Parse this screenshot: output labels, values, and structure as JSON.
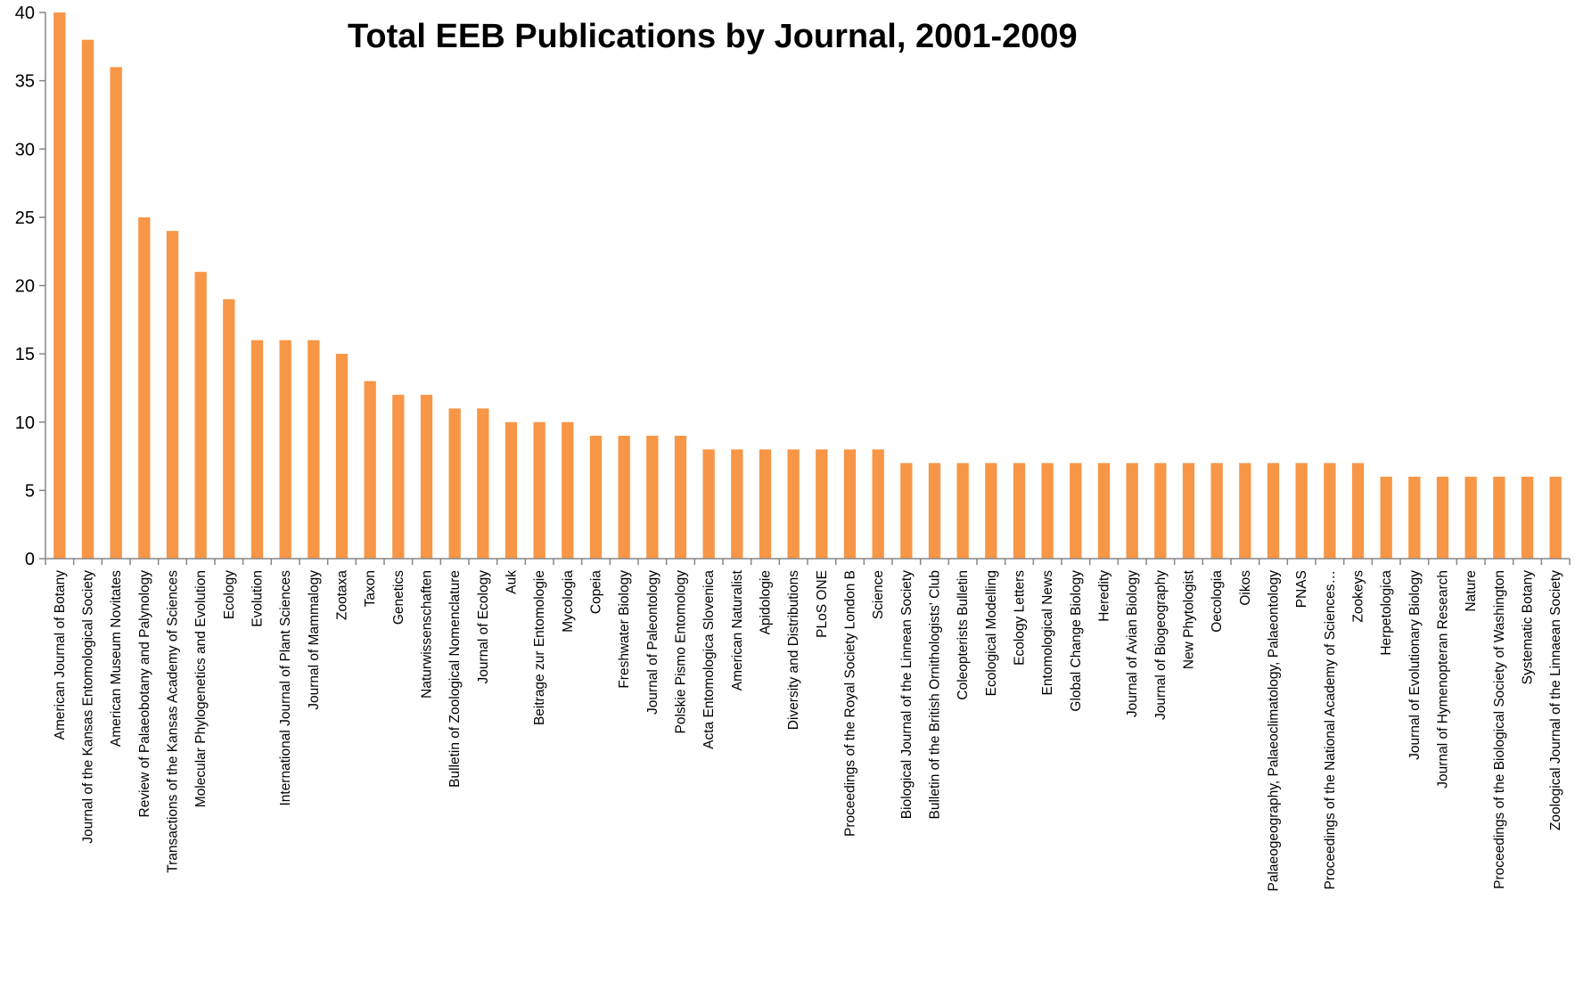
{
  "chart_data": {
    "type": "bar",
    "title": "Total EEB Publications by Journal, 2001-2009",
    "xlabel": "",
    "ylabel": "",
    "ylim": [
      0,
      40
    ],
    "yticks": [
      "0",
      "5",
      "10",
      "15",
      "20",
      "25",
      "30",
      "35",
      "40"
    ],
    "grid": false,
    "legend": "none",
    "bar_color": "#F79646",
    "categories": [
      "American Journal of Botany",
      "Journal of the Kansas Entomological Society",
      "American Museum Novitates",
      "Review of Palaeobotany and Palynology",
      "Transactions of the Kansas Academy of Sciences",
      "Molecular Phylogenetics and Evolution",
      "Ecology",
      "Evolution",
      "International Journal of Plant Sciences",
      "Journal of Mammalogy",
      "Zootaxa",
      "Taxon",
      "Genetics",
      "Naturwissenschaften",
      "Bulletin of Zoological Nomenclature",
      "Journal of Ecology",
      "Auk",
      "Beitrage zur Entomologie",
      "Mycologia",
      "Copeia",
      "Freshwater Biology",
      "Journal of Paleontology",
      "Polskie Pismo Entomology",
      "Acta Entomologica Slovenica",
      "American Naturalist",
      "Apidologie",
      "Diversity and Distributions",
      "PLoS ONE",
      "Proceedings of the Royal Society London B",
      "Science",
      "Biological Journal of the Linnean Society",
      "Bulletin of the British Ornithologists' Club",
      "Coleopterists Bulletin",
      "Ecological Modelling",
      "Ecology Letters",
      "Entomological News",
      "Global Change Biology",
      "Heredity",
      "Journal of Avian Biology",
      "Journal of Biogeography",
      "New Phytologist",
      "Oecologia",
      "Oikos",
      "Palaeogeography, Palaeoclimatology, Palaeontology",
      "PNAS",
      "Proceedings of the National Academy of Sciences…",
      "Zookeys",
      "Herpetologica",
      "Journal of Evolutionary Biology",
      "Journal of Hymenopteran Research",
      "Nature",
      "Proceedings of the Biological Society of Washington",
      "Systematic Botany",
      "Zoological Journal of the Linnaean Society"
    ],
    "values": [
      40,
      38,
      36,
      25,
      24,
      21,
      19,
      16,
      16,
      16,
      15,
      13,
      12,
      12,
      11,
      11,
      10,
      10,
      10,
      9,
      9,
      9,
      9,
      8,
      8,
      8,
      8,
      8,
      8,
      8,
      7,
      7,
      7,
      7,
      7,
      7,
      7,
      7,
      7,
      7,
      7,
      7,
      7,
      7,
      7,
      7,
      7,
      6,
      6,
      6,
      6,
      6,
      6,
      6
    ]
  }
}
